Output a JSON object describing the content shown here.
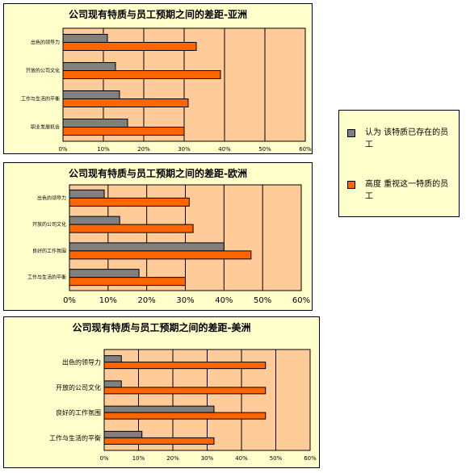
{
  "legend": {
    "exists_label": "认为 该特质已存在的员 工",
    "valued_label": "高度 重视这一特质的员 工",
    "exists_color": "#808080",
    "valued_color": "#ff6600"
  },
  "chart_data": [
    {
      "type": "bar",
      "title": "公司现有特质与员工预期之间的差距-亚洲",
      "categories": [
        "出色的领导力",
        "开放的公司文化",
        "工作与生活的平衡",
        "职业发展机会"
      ],
      "series": [
        {
          "name": "认为 该特质已存在的员 工",
          "values": [
            11,
            13,
            14,
            16
          ]
        },
        {
          "name": "高度 重视这一特质的员 工",
          "values": [
            33,
            39,
            31,
            30
          ]
        }
      ],
      "xlim": [
        0,
        60
      ],
      "xticks": [
        "0%",
        "10%",
        "20%",
        "30%",
        "40%",
        "50%",
        "60%"
      ],
      "plot_bg": "#ffcc99",
      "grid": true
    },
    {
      "type": "bar",
      "title": "公司现有特质与员工预期之间的差距-欧洲",
      "categories": [
        "出色的领导力",
        "开放的公司文化",
        "良好的工作氛围",
        "工作与生活的平衡"
      ],
      "series": [
        {
          "name": "认为 该特质已存在的员 工",
          "values": [
            9,
            13,
            40,
            18
          ]
        },
        {
          "name": "高度 重视这一特质的员 工",
          "values": [
            31,
            32,
            47,
            30
          ]
        }
      ],
      "xlim": [
        0,
        60
      ],
      "xticks": [
        "0%",
        "10%",
        "20%",
        "30%",
        "40%",
        "50%",
        "60%"
      ],
      "plot_bg": "#ffcc99",
      "grid": true
    },
    {
      "type": "bar",
      "title": "公司现有特质与员工预期之间的差距-美洲",
      "categories": [
        "出色的领导力",
        "开放的公司文化",
        "良好的工作氛围",
        "工作与生活的平衡"
      ],
      "series": [
        {
          "name": "认为 该特质已存在的员 工",
          "values": [
            5,
            5,
            32,
            11
          ]
        },
        {
          "name": "高度 重视这一特质的员 工",
          "values": [
            47,
            47,
            47,
            32
          ]
        }
      ],
      "xlim": [
        0,
        60
      ],
      "xticks": [
        "0%",
        "10%",
        "20%",
        "30%",
        "40%",
        "50%",
        "60%"
      ],
      "plot_bg": "#ffcc99",
      "grid": true
    }
  ]
}
